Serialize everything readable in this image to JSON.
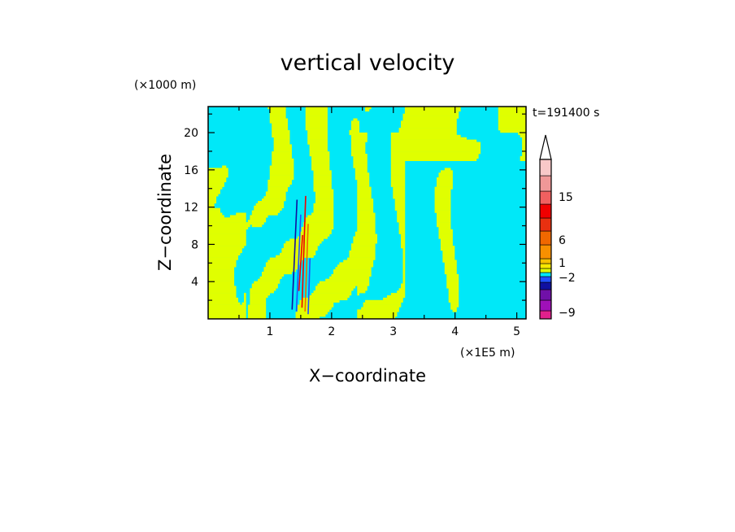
{
  "chart_data": {
    "type": "heatmap",
    "title": "vertical velocity",
    "time_label": "t=191400 s",
    "xlabel": "X−coordinate",
    "ylabel": "Z−coordinate",
    "x_unit": "(×1E5 m)",
    "y_unit": "(×1000 m)",
    "xlim": [
      0,
      5.15
    ],
    "ylim": [
      0,
      22.8
    ],
    "x_ticks": [
      1,
      2,
      3,
      4,
      5
    ],
    "x_tick_labels": [
      "1",
      "2",
      "3",
      "4",
      "5"
    ],
    "y_ticks": [
      4,
      8,
      12,
      16,
      20
    ],
    "y_tick_labels": [
      "4",
      "8",
      "12",
      "16",
      "20"
    ],
    "colorbar": {
      "labels": [
        "15",
        "6",
        "1",
        "−2",
        "−9"
      ],
      "colors": [
        "#e0208c",
        "#a010b8",
        "#7010a8",
        "#1010a0",
        "#2050ff",
        "#00e8f8",
        "#e0ff00",
        "#f8e800",
        "#f8c000",
        "#f89000",
        "#f06800",
        "#e83010",
        "#f00000",
        "#f06060",
        "#f09898",
        "#f8c8c8"
      ],
      "background_color": "#00e8f8",
      "positive_color": "#e0ff00"
    }
  }
}
